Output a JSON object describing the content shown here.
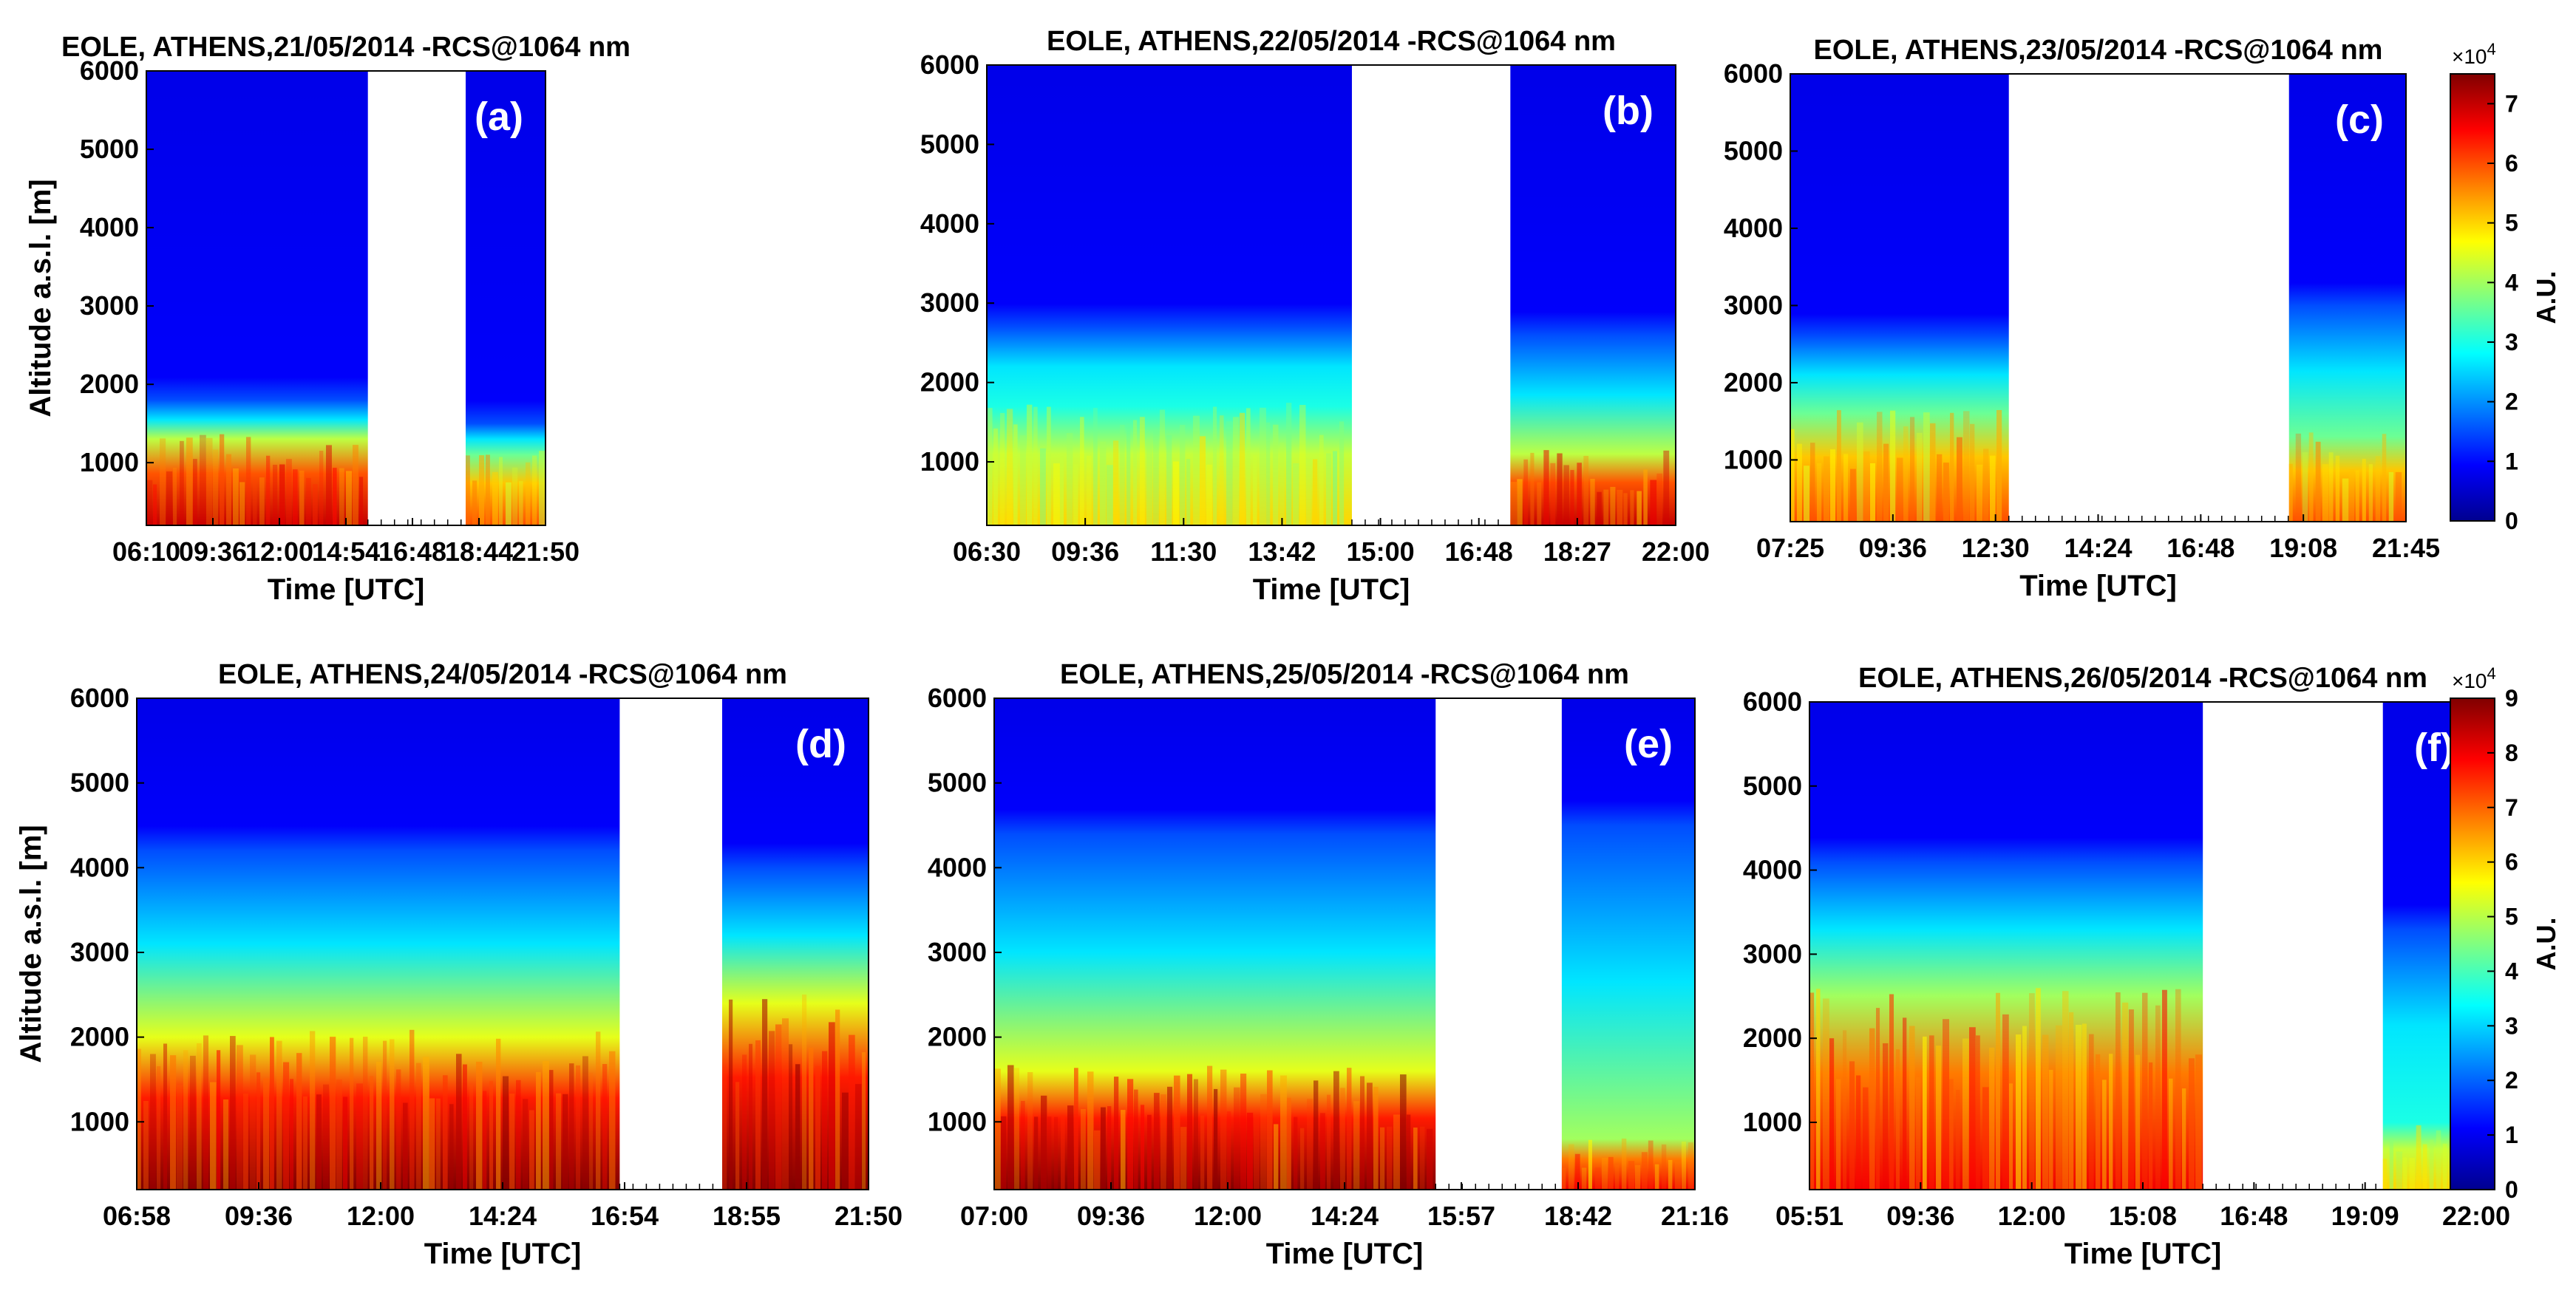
{
  "chart_data": [
    {
      "type": "heatmap",
      "panel_label": "(a)",
      "title": "EOLE, ATHENS,21/05/2014 -RCS@1064 nm",
      "xlabel": "Time [UTC]",
      "ylabel": "Altitude a.s.l. [m]",
      "ylim": [
        200,
        6000
      ],
      "yticks": [
        "1000",
        "2000",
        "3000",
        "4000",
        "5000",
        "6000"
      ],
      "xticks": [
        "06:10",
        "09:36",
        "12:00",
        "14:54",
        "16:48",
        "18:44",
        "21:50"
      ],
      "data_segments": [
        {
          "x_start": 0.0,
          "x_end": 0.555,
          "surface_high": 7,
          "layer_top_m": 1800,
          "layer_base_high_m": 1300
        },
        {
          "x_start": 0.8,
          "x_end": 1.0,
          "surface_high": 6,
          "layer_top_m": 1500,
          "layer_base_high_m": 1100
        }
      ]
    },
    {
      "type": "heatmap",
      "panel_label": "(b)",
      "title": "EOLE, ATHENS,22/05/2014 -RCS@1064 nm",
      "xlabel": "Time [UTC]",
      "ylabel": "",
      "ylim": [
        200,
        6000
      ],
      "yticks": [
        "1000",
        "2000",
        "3000",
        "4000",
        "5000",
        "6000"
      ],
      "xticks": [
        "06:30",
        "09:36",
        "11:30",
        "13:42",
        "15:00",
        "16:48",
        "18:27",
        "22:00"
      ],
      "data_segments": [
        {
          "x_start": 0.0,
          "x_end": 0.53,
          "surface_high": 5,
          "layer_top_m": 2700,
          "layer_base_high_m": 1700
        },
        {
          "x_start": 0.76,
          "x_end": 1.0,
          "surface_high": 7,
          "layer_top_m": 2600,
          "layer_base_high_m": 1100
        }
      ]
    },
    {
      "type": "heatmap",
      "panel_label": "(c)",
      "title": "EOLE, ATHENS,23/05/2014 -RCS@1064 nm",
      "xlabel": "Time [UTC]",
      "ylabel": "",
      "ylim": [
        200,
        6000
      ],
      "yticks": [
        "1000",
        "2000",
        "3000",
        "4000",
        "5000",
        "6000"
      ],
      "xticks": [
        "07:25",
        "09:36",
        "12:30",
        "14:24",
        "16:48",
        "19:08",
        "21:45"
      ],
      "data_segments": [
        {
          "x_start": 0.0,
          "x_end": 0.355,
          "surface_high": 6,
          "layer_top_m": 2600,
          "layer_base_high_m": 1600
        },
        {
          "x_start": 0.81,
          "x_end": 1.0,
          "surface_high": 6,
          "layer_top_m": 3000,
          "layer_base_high_m": 1300
        }
      ]
    },
    {
      "type": "heatmap",
      "panel_label": "(d)",
      "title": "EOLE, ATHENS,24/05/2014 -RCS@1064 nm",
      "xlabel": "Time [UTC]",
      "ylabel": "Altitude a.s.l. [m]",
      "ylim": [
        200,
        6000
      ],
      "yticks": [
        "1000",
        "2000",
        "3000",
        "4000",
        "5000",
        "6000"
      ],
      "xticks": [
        "06:58",
        "09:36",
        "12:00",
        "14:24",
        "16:54",
        "18:55",
        "21:50"
      ],
      "data_segments": [
        {
          "x_start": 0.0,
          "x_end": 0.66,
          "surface_high": 9,
          "layer_top_m": 4200,
          "layer_base_high_m": 2000
        },
        {
          "x_start": 0.8,
          "x_end": 1.0,
          "surface_high": 9,
          "layer_top_m": 4000,
          "layer_base_high_m": 2400
        }
      ]
    },
    {
      "type": "heatmap",
      "panel_label": "(e)",
      "title": "EOLE, ATHENS,25/05/2014 -RCS@1064 nm",
      "xlabel": "Time [UTC]",
      "ylabel": "",
      "ylim": [
        200,
        6000
      ],
      "yticks": [
        "1000",
        "2000",
        "3000",
        "4000",
        "5000",
        "6000"
      ],
      "xticks": [
        "07:00",
        "09:36",
        "12:00",
        "14:24",
        "15:57",
        "18:42",
        "21:16"
      ],
      "data_segments": [
        {
          "x_start": 0.0,
          "x_end": 0.63,
          "surface_high": 9,
          "layer_top_m": 4400,
          "layer_base_high_m": 1600
        },
        {
          "x_start": 0.81,
          "x_end": 1.0,
          "surface_high": 8,
          "layer_top_m": 4500,
          "layer_base_high_m": 800
        }
      ]
    },
    {
      "type": "heatmap",
      "panel_label": "(f)",
      "title": "EOLE, ATHENS,26/05/2014 -RCS@1064 nm",
      "xlabel": "Time [UTC]",
      "ylabel": "",
      "ylim": [
        200,
        6000
      ],
      "yticks": [
        "1000",
        "2000",
        "3000",
        "4000",
        "5000",
        "6000"
      ],
      "xticks": [
        "05:51",
        "09:36",
        "12:00",
        "15:08",
        "16:48",
        "19:09",
        "22:00"
      ],
      "data_segments": [
        {
          "x_start": 0.0,
          "x_end": 0.59,
          "surface_high": 8,
          "layer_top_m": 4100,
          "layer_base_high_m": 2500
        },
        {
          "x_start": 0.86,
          "x_end": 1.0,
          "surface_high": 6,
          "layer_top_m": 3300,
          "layer_base_high_m": 1000
        }
      ]
    }
  ],
  "colorbars": [
    {
      "label": "A.U.",
      "multiplier": "×10",
      "exponent": "4",
      "range": [
        0,
        7.5
      ],
      "ticks": [
        "0",
        "1",
        "2",
        "3",
        "4",
        "5",
        "6",
        "7"
      ],
      "applies_to": "top row"
    },
    {
      "label": "A.U.",
      "multiplier": "×10",
      "exponent": "4",
      "range": [
        0,
        9
      ],
      "ticks": [
        "0",
        "1",
        "2",
        "3",
        "4",
        "5",
        "6",
        "7",
        "8",
        "9"
      ],
      "applies_to": "bottom row"
    }
  ],
  "colormap": [
    "#00008f",
    "#0000ff",
    "#0080ff",
    "#00ffff",
    "#80ff80",
    "#ffff00",
    "#ff8000",
    "#ff0000",
    "#800000"
  ]
}
